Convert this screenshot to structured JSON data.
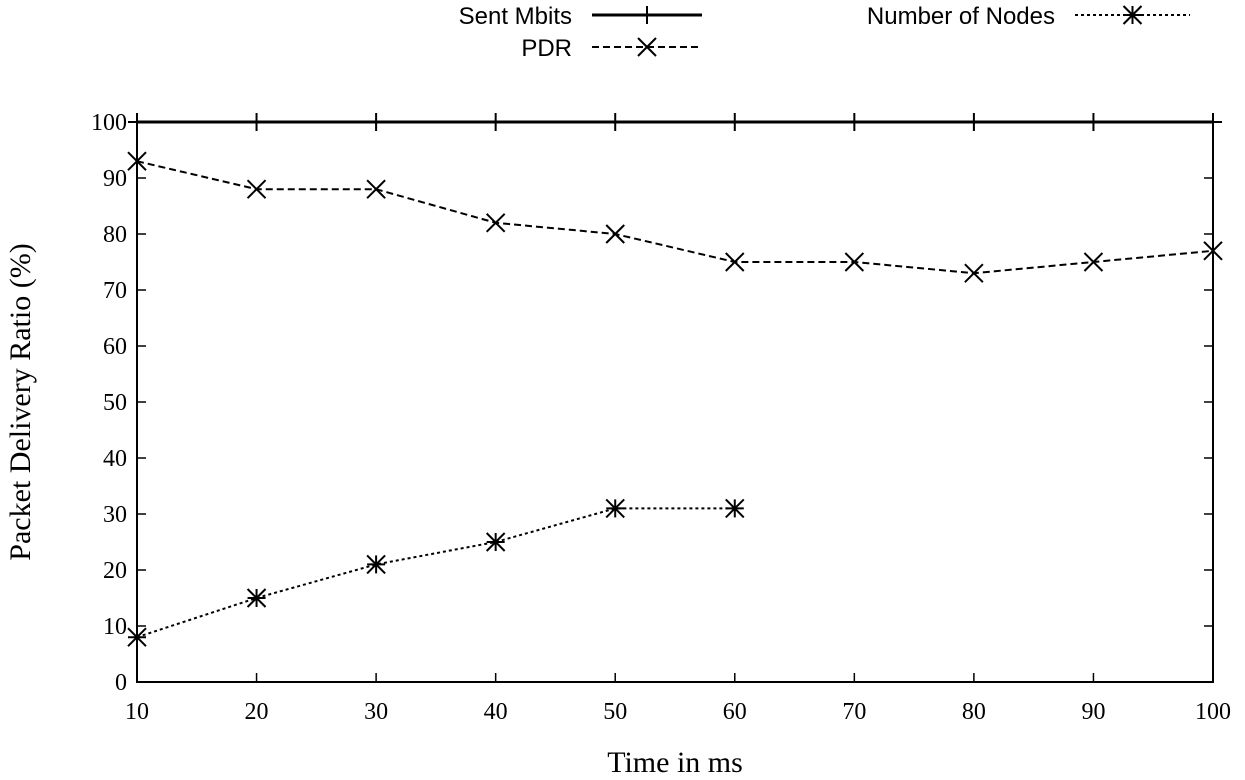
{
  "chart_data": {
    "type": "line",
    "title": "",
    "xlabel": "Time in ms",
    "ylabel": "Packet Delivery Ratio (%)",
    "x": [
      10,
      20,
      30,
      40,
      50,
      60,
      70,
      80,
      90,
      100
    ],
    "xlim": [
      10,
      100
    ],
    "ylim": [
      0,
      100
    ],
    "xticks": [
      10,
      20,
      30,
      40,
      50,
      60,
      70,
      80,
      90,
      100
    ],
    "yticks": [
      0,
      10,
      20,
      30,
      40,
      50,
      60,
      70,
      80,
      90,
      100
    ],
    "grid": false,
    "legend_position": "top",
    "series": [
      {
        "name": "Sent Mbits",
        "style": "solid",
        "marker": "plus",
        "x": [
          10,
          20,
          30,
          40,
          50,
          60,
          70,
          80,
          90,
          100
        ],
        "values": [
          100,
          100,
          100,
          100,
          100,
          100,
          100,
          100,
          100,
          100
        ]
      },
      {
        "name": "PDR",
        "style": "dashed",
        "marker": "cross",
        "x": [
          10,
          20,
          30,
          40,
          50,
          60,
          70,
          80,
          90,
          100
        ],
        "values": [
          93,
          88,
          88,
          82,
          80,
          75,
          75,
          73,
          75,
          77
        ]
      },
      {
        "name": "Number of Nodes",
        "style": "dotted",
        "marker": "star",
        "x": [
          10,
          20,
          30,
          40,
          50,
          60
        ],
        "values": [
          8,
          15,
          21,
          25,
          31,
          31
        ]
      }
    ],
    "colors": {
      "line": "#000000",
      "frame": "#000000",
      "background": "#ffffff"
    }
  }
}
